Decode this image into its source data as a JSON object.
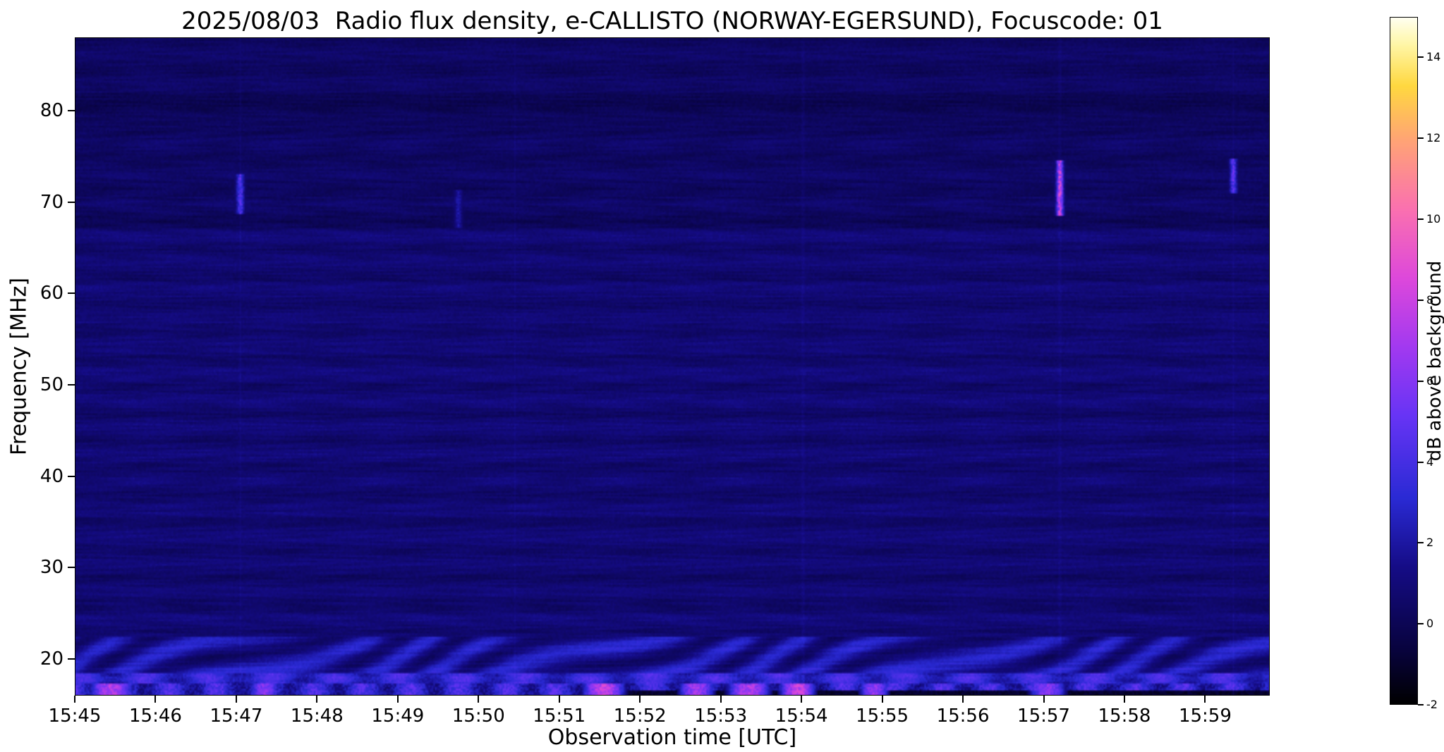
{
  "figure": {
    "background_color": "#ffffff",
    "text_color": "#000000"
  },
  "chart_data": {
    "type": "heatmap",
    "title": "2025/08/03  Radio flux density, e-CALLISTO (NORWAY-EGERSUND), Focuscode: 01",
    "xlabel": "Observation time [UTC]",
    "ylabel": "Frequency [MHz]",
    "x_ticks": [
      "15:45",
      "15:46",
      "15:47",
      "15:48",
      "15:49",
      "15:50",
      "15:51",
      "15:52",
      "15:53",
      "15:54",
      "15:55",
      "15:56",
      "15:57",
      "15:58",
      "15:59"
    ],
    "x_tick_interval_minutes": 1,
    "x_range_minutes": [
      0,
      14.8
    ],
    "y_ticks": [
      20,
      30,
      40,
      50,
      60,
      70,
      80
    ],
    "y_range_mhz": [
      16,
      88
    ],
    "grid": false,
    "legend": "colorbar-right",
    "colorbar": {
      "label": "dB above background",
      "ticks": [
        -2,
        0,
        2,
        4,
        6,
        8,
        10,
        12,
        14
      ],
      "range": [
        -2,
        15
      ],
      "colormap": "gnuplot2-like (black-blue-violet-magenta-pink-orange-yellow-white)",
      "colormap_stops": [
        [
          0.0,
          [
            0,
            0,
            0
          ]
        ],
        [
          0.08,
          [
            8,
            3,
            62
          ]
        ],
        [
          0.2,
          [
            21,
            12,
            134
          ]
        ],
        [
          0.3,
          [
            42,
            42,
            212
          ]
        ],
        [
          0.42,
          [
            103,
            52,
            245
          ]
        ],
        [
          0.52,
          [
            162,
            57,
            240
          ]
        ],
        [
          0.62,
          [
            221,
            72,
            219
          ]
        ],
        [
          0.72,
          [
            250,
            112,
            176
          ]
        ],
        [
          0.82,
          [
            255,
            163,
            118
          ]
        ],
        [
          0.9,
          [
            255,
            216,
            64
          ]
        ],
        [
          0.96,
          [
            255,
            246,
            166
          ]
        ],
        [
          1.0,
          [
            255,
            255,
            242
          ]
        ]
      ]
    },
    "content": {
      "description": "e-CALLISTO solar radio spectrogram, 15:45-16:00 UTC. Mostly quiet dark-blue background (~0-1 dB) with horizontal banding and diagonal interference ripple; a darker horizontal band near 80 MHz and a texture seam near 67 MHz. Strong wavy RFI below ~23 MHz reaching 3-9 dB, with magenta/pink patches near 16-17 MHz and a near-black strip (-1 to -2 dB) along the bottom edge after ~15:51. Short vertical point bursts near 70 MHz at 15:47, 15:57 (brightest, pink) and 15:59.",
      "seed": 20250803,
      "background_level_db": 0.6,
      "dark_band_mhz": 80.3,
      "seam_mhz": 67.8,
      "low_band_top_mhz": 23.0,
      "spot_f_max_mhz": 17.4,
      "dark_bottom_start_min": 6.3,
      "bursts": [
        {
          "time_min": 2.05,
          "f_low": 69.0,
          "f_high": 72.6,
          "peak_db": 5.5,
          "sigma_s": 2.0
        },
        {
          "time_min": 4.75,
          "f_low": 67.5,
          "f_high": 71.0,
          "peak_db": 2.6,
          "sigma_s": 2.0
        },
        {
          "time_min": 12.2,
          "f_low": 68.8,
          "f_high": 74.2,
          "peak_db": 9.5,
          "sigma_s": 1.8
        },
        {
          "time_min": 14.35,
          "f_low": 71.4,
          "f_high": 74.3,
          "peak_db": 6.0,
          "sigma_s": 1.8
        }
      ],
      "low_band_spots": [
        {
          "time_min": 0.45,
          "width_min": 0.3,
          "peak_db": 8.5
        },
        {
          "time_min": 2.35,
          "width_min": 0.2,
          "peak_db": 7.0
        },
        {
          "time_min": 6.55,
          "width_min": 0.3,
          "peak_db": 9.0
        },
        {
          "time_min": 7.7,
          "width_min": 0.25,
          "peak_db": 8.0
        },
        {
          "time_min": 8.35,
          "width_min": 0.3,
          "peak_db": 8.5
        },
        {
          "time_min": 8.95,
          "width_min": 0.25,
          "peak_db": 9.0
        },
        {
          "time_min": 9.9,
          "width_min": 0.2,
          "peak_db": 7.5
        },
        {
          "time_min": 12.05,
          "width_min": 0.25,
          "peak_db": 7.0
        }
      ],
      "artifact_lines_min": [
        2.05,
        5.45,
        9.02,
        12.2,
        14.35
      ]
    }
  }
}
